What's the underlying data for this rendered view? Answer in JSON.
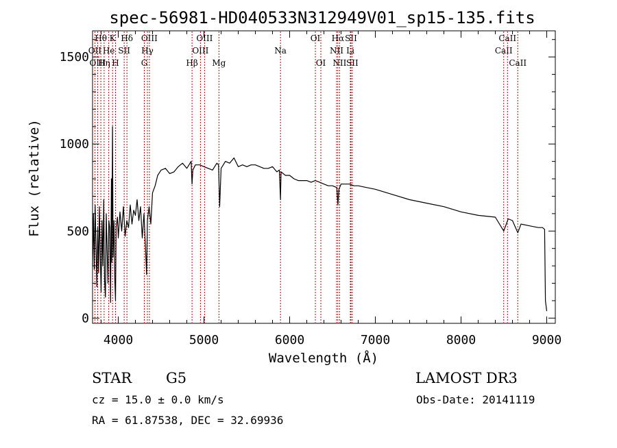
{
  "chart_data": {
    "type": "line",
    "title": "spec-56981-HD040533N312949V01_sp15-135.fits",
    "xlabel": "Wavelength (Å)",
    "ylabel": "Flux (relative)",
    "xlim": [
      3700,
      9100
    ],
    "ylim": [
      -30,
      1650
    ],
    "xticks": [
      4000,
      5000,
      6000,
      7000,
      8000,
      9000
    ],
    "yticks": [
      0,
      500,
      1000,
      1500
    ],
    "series": [
      {
        "name": "flux",
        "x": [
          3700,
          3710,
          3720,
          3730,
          3740,
          3750,
          3760,
          3770,
          3780,
          3790,
          3800,
          3810,
          3820,
          3830,
          3840,
          3850,
          3860,
          3870,
          3880,
          3890,
          3900,
          3910,
          3920,
          3925,
          3933,
          3940,
          3950,
          3960,
          3968,
          3975,
          3990,
          4000,
          4020,
          4040,
          4060,
          4080,
          4100,
          4120,
          4140,
          4160,
          4180,
          4200,
          4220,
          4240,
          4260,
          4280,
          4300,
          4320,
          4330,
          4340,
          4360,
          4380,
          4400,
          4430,
          4460,
          4500,
          4550,
          4600,
          4650,
          4700,
          4750,
          4800,
          4850,
          4861,
          4870,
          4900,
          4950,
          5000,
          5050,
          5100,
          5150,
          5170,
          5183,
          5200,
          5250,
          5300,
          5350,
          5400,
          5450,
          5500,
          5550,
          5600,
          5650,
          5700,
          5750,
          5800,
          5850,
          5880,
          5893,
          5900,
          5950,
          6000,
          6050,
          6100,
          6150,
          6200,
          6250,
          6300,
          6350,
          6400,
          6450,
          6500,
          6550,
          6563,
          6575,
          6600,
          6650,
          6700,
          6750,
          6800,
          6900,
          7000,
          7200,
          7400,
          7600,
          7800,
          8000,
          8200,
          8400,
          8498,
          8550,
          8600,
          8662,
          8700,
          8800,
          8900,
          8950,
          8975,
          8985,
          9000
        ],
        "y": [
          300,
          600,
          280,
          650,
          420,
          180,
          520,
          260,
          640,
          350,
          150,
          560,
          300,
          680,
          220,
          120,
          600,
          380,
          200,
          560,
          520,
          90,
          800,
          320,
          1100,
          350,
          560,
          220,
          100,
          520,
          580,
          460,
          610,
          500,
          640,
          470,
          560,
          520,
          650,
          540,
          620,
          590,
          680,
          560,
          640,
          460,
          600,
          380,
          250,
          560,
          640,
          540,
          720,
          760,
          820,
          850,
          860,
          830,
          840,
          870,
          890,
          860,
          900,
          770,
          850,
          880,
          880,
          870,
          860,
          850,
          890,
          880,
          640,
          860,
          900,
          890,
          920,
          870,
          880,
          870,
          880,
          880,
          870,
          860,
          860,
          870,
          840,
          850,
          680,
          840,
          820,
          820,
          800,
          790,
          790,
          790,
          780,
          790,
          780,
          770,
          760,
          760,
          750,
          650,
          740,
          770,
          770,
          770,
          760,
          760,
          750,
          740,
          710,
          680,
          660,
          640,
          610,
          590,
          580,
          500,
          570,
          560,
          490,
          540,
          530,
          520,
          520,
          510,
          100,
          40
        ]
      }
    ],
    "line_markers": [
      {
        "label": "Hθ",
        "wave": 3797,
        "row": 1
      },
      {
        "label": "OII",
        "wave": 3727,
        "row": 2
      },
      {
        "label": "He",
        "wave": 3889,
        "row": 2
      },
      {
        "label": "OIII",
        "wave": 3760,
        "row": 3
      },
      {
        "label": "Hη",
        "wave": 3835,
        "row": 3
      },
      {
        "label": "K",
        "wave": 3933,
        "row": 1
      },
      {
        "label": "H",
        "wave": 3968,
        "row": 3
      },
      {
        "label": "SII",
        "wave": 4069,
        "row": 2
      },
      {
        "label": "Hδ",
        "wave": 4101,
        "row": 1
      },
      {
        "label": "G",
        "wave": 4304,
        "row": 3
      },
      {
        "label": "Hγ",
        "wave": 4340,
        "row": 2
      },
      {
        "label": "OIII",
        "wave": 4363,
        "row": 1
      },
      {
        "label": "Hβ",
        "wave": 4861,
        "row": 3
      },
      {
        "label": "OIII",
        "wave": 4959,
        "row": 2
      },
      {
        "label": "OIII",
        "wave": 5007,
        "row": 1
      },
      {
        "label": "Mg",
        "wave": 5175,
        "row": 3
      },
      {
        "label": "Na",
        "wave": 5893,
        "row": 2
      },
      {
        "label": "OI",
        "wave": 6300,
        "row": 1
      },
      {
        "label": "OI",
        "wave": 6364,
        "row": 3
      },
      {
        "label": "NII",
        "wave": 6548,
        "row": 2
      },
      {
        "label": "Hα",
        "wave": 6563,
        "row": 1
      },
      {
        "label": "NII",
        "wave": 6583,
        "row": 3
      },
      {
        "label": "Li",
        "wave": 6708,
        "row": 2
      },
      {
        "label": "SII",
        "wave": 6716,
        "row": 1
      },
      {
        "label": "SII",
        "wave": 6731,
        "row": 3
      },
      {
        "label": "CaII",
        "wave": 8498,
        "row": 2
      },
      {
        "label": "CaII",
        "wave": 8542,
        "row": 1
      },
      {
        "label": "CaII",
        "wave": 8662,
        "row": 3
      }
    ]
  },
  "info": {
    "object_class": "STAR",
    "subclass": "G5",
    "survey": "LAMOST DR3",
    "redshift": "cz = 15.0 ± 0.0 km/s",
    "obs_date": "Obs-Date: 20141119",
    "coords": "RA =  61.87538, DEC =  32.69936"
  },
  "colors": {
    "spectrum": "#000000",
    "marker_line": "#c00000",
    "axes": "#000000"
  }
}
